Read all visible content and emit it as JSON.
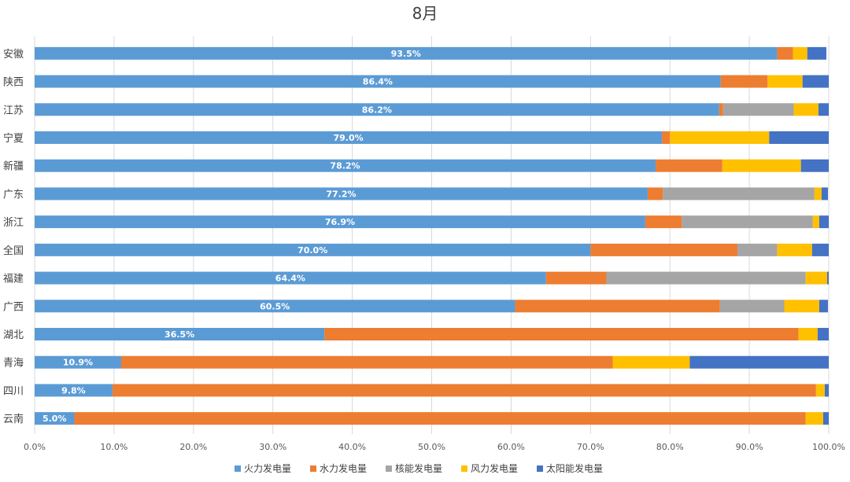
{
  "chart_data": {
    "type": "bar",
    "orientation": "horizontal",
    "stacked": "percent",
    "title": "8月",
    "categories": [
      "安徽",
      "陕西",
      "江苏",
      "宁夏",
      "新疆",
      "广东",
      "浙江",
      "全国",
      "福建",
      "广西",
      "湖北",
      "青海",
      "四川",
      "云南"
    ],
    "series": [
      {
        "name": "火力发电量",
        "color": "#5B9BD5",
        "values": [
          93.5,
          86.4,
          86.2,
          79.0,
          78.2,
          77.2,
          76.9,
          70.0,
          64.4,
          60.5,
          36.5,
          10.9,
          9.8,
          5.0
        ]
      },
      {
        "name": "水力发电量",
        "color": "#ED7D31",
        "values": [
          2.0,
          5.9,
          0.5,
          1.0,
          8.4,
          1.9,
          4.6,
          18.5,
          7.6,
          25.8,
          59.7,
          61.9,
          88.6,
          92.1
        ]
      },
      {
        "name": "核能发电量",
        "color": "#A5A5A5",
        "values": [
          0,
          0,
          8.9,
          0,
          0,
          19.1,
          16.5,
          5.0,
          25.1,
          8.1,
          0,
          0,
          0,
          0
        ]
      },
      {
        "name": "风力发电量",
        "color": "#FFC000",
        "values": [
          1.8,
          4.4,
          3.1,
          12.5,
          9.9,
          0.9,
          0.8,
          4.4,
          2.7,
          4.4,
          2.4,
          9.7,
          1.1,
          2.2
        ]
      },
      {
        "name": "太阳能发电量",
        "color": "#4472C4",
        "values": [
          2.4,
          3.3,
          1.3,
          7.5,
          3.5,
          0.8,
          1.2,
          2.1,
          0.2,
          1.1,
          1.4,
          17.5,
          0.5,
          0.7
        ]
      }
    ],
    "data_labels": [
      "93.5%",
      "86.4%",
      "86.2%",
      "79.0%",
      "78.2%",
      "77.2%",
      "76.9%",
      "70.0%",
      "64.4%",
      "60.5%",
      "36.5%",
      "10.9%",
      "9.8%",
      "5.0%"
    ],
    "xlim": [
      0,
      100
    ],
    "x_ticks": [
      0,
      10,
      20,
      30,
      40,
      50,
      60,
      70,
      80,
      90,
      100
    ],
    "x_tick_labels": [
      "0.0%",
      "10.0%",
      "20.0%",
      "30.0%",
      "40.0%",
      "50.0%",
      "60.0%",
      "70.0%",
      "80.0%",
      "90.0%",
      "100.0%"
    ],
    "grid": "vertical",
    "legend": "bottom"
  }
}
